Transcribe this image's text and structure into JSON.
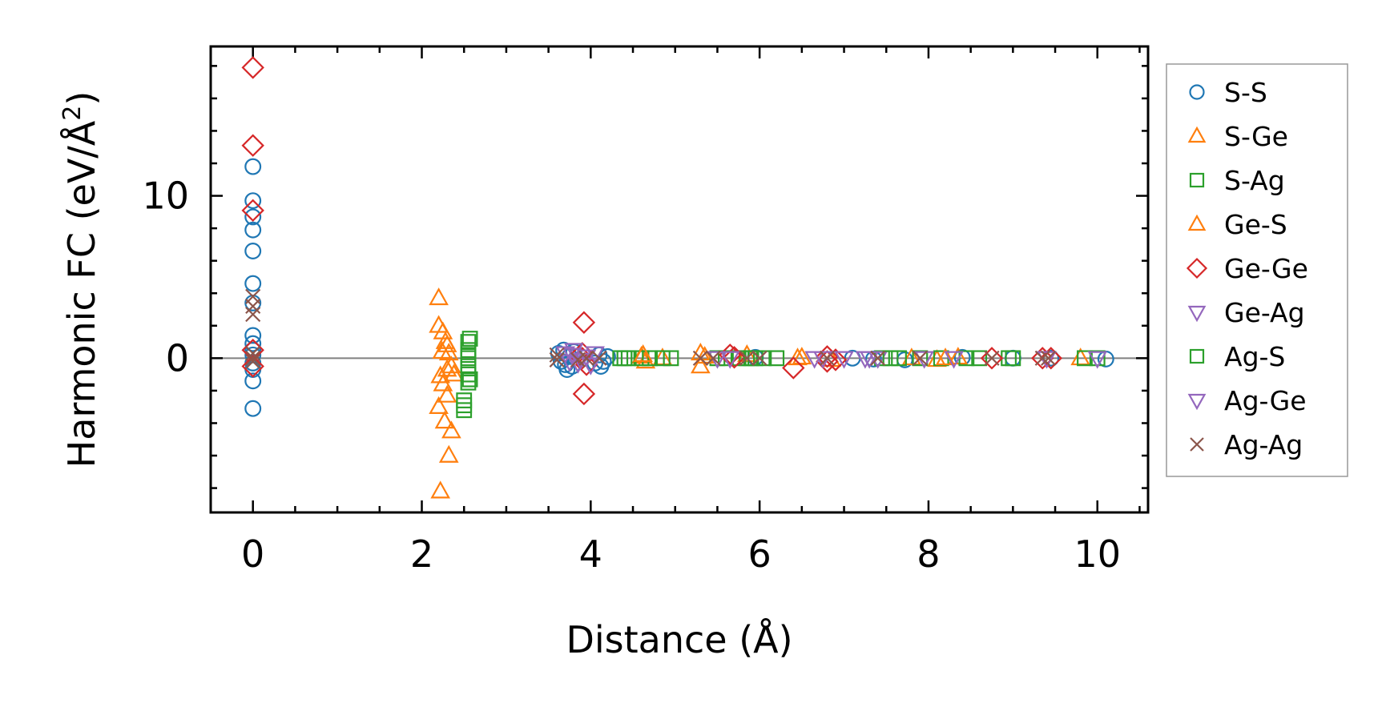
{
  "chart_data": {
    "type": "scatter",
    "xlabel": "Distance (Å)",
    "ylabel": "Harmonic FC (eV/Å",
    "ylabel_sup": "2",
    "ylabel_close": ")",
    "xlim": [
      -0.5,
      10.6
    ],
    "ylim": [
      -9.5,
      19.2
    ],
    "x_ticks": [
      0,
      2,
      4,
      6,
      8,
      10
    ],
    "x_tick_labels": [
      "0",
      "2",
      "4",
      "6",
      "8",
      "10"
    ],
    "y_ticks": [
      0,
      10
    ],
    "y_tick_labels": [
      "0",
      "10"
    ],
    "x_minor_step": 0.5,
    "y_minor_step": 2,
    "zero_line": true,
    "grid": false,
    "legend_position": "outside-right",
    "series": [
      {
        "name": "S-S",
        "marker": "circle",
        "color": "#1f77b4",
        "points": [
          [
            0,
            11.8
          ],
          [
            0,
            9.7
          ],
          [
            0,
            8.7
          ],
          [
            0,
            7.9
          ],
          [
            0,
            6.6
          ],
          [
            0,
            4.6
          ],
          [
            0,
            3.4
          ],
          [
            0,
            1.4
          ],
          [
            0,
            0.9
          ],
          [
            0,
            0.5
          ],
          [
            0,
            0.2
          ],
          [
            0,
            -0.3
          ],
          [
            0,
            -0.7
          ],
          [
            0,
            -1.4
          ],
          [
            0,
            -3.1
          ],
          [
            3.62,
            0.3
          ],
          [
            3.65,
            -0.2
          ],
          [
            3.68,
            0.5
          ],
          [
            3.7,
            -0.4
          ],
          [
            3.72,
            -0.7
          ],
          [
            3.75,
            0.1
          ],
          [
            3.78,
            -0.5
          ],
          [
            3.8,
            0.4
          ],
          [
            4.05,
            -0.3
          ],
          [
            4.1,
            0.2
          ],
          [
            4.12,
            -0.5
          ],
          [
            4.15,
            -0.2
          ],
          [
            4.2,
            0.1
          ],
          [
            5.95,
            0.05
          ],
          [
            7.1,
            0.0
          ],
          [
            7.35,
            -0.05
          ],
          [
            7.72,
            -0.1
          ],
          [
            8.4,
            0.05
          ],
          [
            9.0,
            0.0
          ],
          [
            9.45,
            0.0
          ],
          [
            10.1,
            -0.05
          ]
        ]
      },
      {
        "name": "S-Ge",
        "marker": "triangle-up",
        "color": "#ff7f0e",
        "points": [
          [
            2.2,
            3.7
          ],
          [
            2.2,
            2.0
          ],
          [
            2.25,
            1.6
          ],
          [
            2.28,
            1.0
          ],
          [
            2.3,
            0.8
          ],
          [
            2.32,
            0.3
          ],
          [
            2.22,
            -1.1
          ],
          [
            2.25,
            -1.6
          ],
          [
            2.3,
            -2.3
          ],
          [
            2.2,
            -3.0
          ],
          [
            2.27,
            -3.9
          ],
          [
            2.35,
            -4.5
          ],
          [
            2.32,
            -6.0
          ],
          [
            2.22,
            -8.2
          ],
          [
            2.35,
            -0.5
          ],
          [
            2.38,
            -1.0
          ],
          [
            4.6,
            0.1
          ],
          [
            4.65,
            -0.2
          ],
          [
            4.85,
            0.0
          ],
          [
            5.3,
            0.3
          ],
          [
            5.3,
            -0.5
          ],
          [
            5.85,
            0.2
          ],
          [
            6.45,
            0.0
          ],
          [
            6.85,
            -0.1
          ],
          [
            7.8,
            0.0
          ],
          [
            8.1,
            -0.1
          ],
          [
            8.35,
            0.05
          ],
          [
            9.8,
            0.0
          ]
        ]
      },
      {
        "name": "S-Ag",
        "marker": "square",
        "color": "#2ca02c",
        "points": [
          [
            2.5,
            -2.6
          ],
          [
            2.5,
            -3.2
          ],
          [
            2.55,
            -1.5
          ],
          [
            2.55,
            -1.0
          ],
          [
            2.55,
            -0.5
          ],
          [
            2.55,
            0.0
          ],
          [
            2.55,
            0.5
          ],
          [
            2.55,
            1.0
          ],
          [
            2.57,
            -1.3
          ],
          [
            2.57,
            1.2
          ],
          [
            4.35,
            0.0
          ],
          [
            4.45,
            0.0
          ],
          [
            4.6,
            0.0
          ],
          [
            4.7,
            0.0
          ],
          [
            4.85,
            0.0
          ],
          [
            4.95,
            0.0
          ],
          [
            5.5,
            0.0
          ],
          [
            5.6,
            0.0
          ],
          [
            5.75,
            0.0
          ],
          [
            5.85,
            0.0
          ],
          [
            5.95,
            0.0
          ],
          [
            6.05,
            0.0
          ],
          [
            6.2,
            0.0
          ],
          [
            7.45,
            0.0
          ],
          [
            7.65,
            0.0
          ],
          [
            7.9,
            0.0
          ],
          [
            8.15,
            0.0
          ],
          [
            8.45,
            0.0
          ],
          [
            8.6,
            0.0
          ],
          [
            8.95,
            0.0
          ],
          [
            9.85,
            0.0
          ],
          [
            10.0,
            0.0
          ]
        ]
      },
      {
        "name": "Ge-S",
        "marker": "triangle-up",
        "color": "#ff7f0e",
        "points": [
          [
            2.24,
            0.4
          ],
          [
            2.3,
            -0.7
          ],
          [
            4.62,
            0.2
          ],
          [
            5.35,
            0.1
          ],
          [
            6.5,
            0.05
          ],
          [
            8.2,
            0.0
          ]
        ]
      },
      {
        "name": "Ge-Ge",
        "marker": "diamond",
        "color": "#d62728",
        "points": [
          [
            0,
            17.9
          ],
          [
            0,
            13.1
          ],
          [
            0,
            9.1
          ],
          [
            0,
            0.5
          ],
          [
            0,
            -0.5
          ],
          [
            3.92,
            2.2
          ],
          [
            3.92,
            -2.2
          ],
          [
            3.9,
            0.3
          ],
          [
            3.95,
            -0.4
          ],
          [
            3.9,
            0.0
          ],
          [
            5.65,
            0.2
          ],
          [
            5.7,
            0.05
          ],
          [
            6.4,
            -0.6
          ],
          [
            6.8,
            0.1
          ],
          [
            6.8,
            -0.2
          ],
          [
            6.9,
            -0.1
          ],
          [
            8.75,
            0.0
          ],
          [
            9.35,
            0.0
          ],
          [
            9.45,
            0.0
          ]
        ]
      },
      {
        "name": "Ge-Ag",
        "marker": "triangle-down",
        "color": "#9467bd",
        "points": [
          [
            3.7,
            0.3
          ],
          [
            3.75,
            -0.2
          ],
          [
            3.8,
            0.5
          ],
          [
            3.85,
            -0.3
          ],
          [
            3.95,
            0.1
          ],
          [
            4.0,
            -0.4
          ],
          [
            4.05,
            0.3
          ],
          [
            5.5,
            0.0
          ],
          [
            5.65,
            0.0
          ],
          [
            6.65,
            0.0
          ],
          [
            7.0,
            0.0
          ],
          [
            7.25,
            0.0
          ],
          [
            7.4,
            0.0
          ],
          [
            7.95,
            0.0
          ],
          [
            8.3,
            0.0
          ],
          [
            9.4,
            0.0
          ],
          [
            10.0,
            0.0
          ]
        ]
      },
      {
        "name": "Ag-S",
        "marker": "square",
        "color": "#2ca02c",
        "points": [
          [
            2.5,
            -2.9
          ],
          [
            2.55,
            0.2
          ],
          [
            4.4,
            0.0
          ],
          [
            5.9,
            0.0
          ],
          [
            7.55,
            0.0
          ],
          [
            9.0,
            0.0
          ]
        ]
      },
      {
        "name": "Ag-Ge",
        "marker": "triangle-down",
        "color": "#9467bd",
        "points": [
          [
            3.78,
            0.2
          ],
          [
            3.88,
            -0.1
          ],
          [
            6.75,
            0.0
          ],
          [
            7.3,
            0.0
          ]
        ]
      },
      {
        "name": "Ag-Ag",
        "marker": "x",
        "color": "#8c564b",
        "points": [
          [
            0,
            3.8
          ],
          [
            0,
            3.2
          ],
          [
            0,
            2.7
          ],
          [
            0,
            0.3
          ],
          [
            0,
            0.0
          ],
          [
            0,
            -0.2
          ],
          [
            3.6,
            -0.1
          ],
          [
            3.6,
            0.2
          ],
          [
            3.85,
            -0.1
          ],
          [
            3.95,
            0.0
          ],
          [
            4.1,
            0.0
          ],
          [
            5.3,
            0.0
          ],
          [
            5.45,
            0.0
          ],
          [
            5.85,
            0.0
          ],
          [
            6.0,
            0.0
          ],
          [
            6.8,
            0.0
          ],
          [
            7.4,
            0.0
          ],
          [
            7.9,
            0.0
          ],
          [
            8.75,
            0.0
          ],
          [
            9.35,
            0.0
          ],
          [
            9.42,
            0.0
          ]
        ]
      }
    ]
  }
}
